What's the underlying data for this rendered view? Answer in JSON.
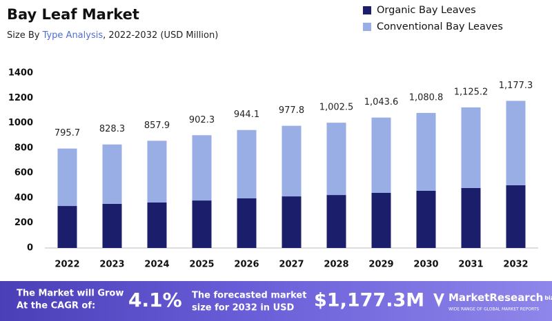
{
  "chart_data": {
    "type": "stacked_bar",
    "title": "Bay Leaf Market",
    "subtitle": [
      "Size By ",
      "Type Analysis",
      ", 2022-2032 (USD Million)"
    ],
    "categories": [
      "2022",
      "2023",
      "2024",
      "2025",
      "2026",
      "2027",
      "2028",
      "2029",
      "2030",
      "2031",
      "2032"
    ],
    "series": [
      {
        "name": "Organic Bay Leaves",
        "color": "#1b1f6b",
        "values": [
          336,
          353,
          364,
          380,
          397,
          413,
          424,
          441,
          458,
          480,
          502
        ]
      },
      {
        "name": "Conventional Bay Leaves",
        "color": "#9aaee6",
        "values": [
          459.7,
          475.3,
          493.9,
          522.3,
          547.1,
          564.8,
          578.5,
          602.6,
          622.8,
          645.2,
          675.3
        ]
      }
    ],
    "totals": {
      "values": [
        795.7,
        828.3,
        857.9,
        902.3,
        944.1,
        977.8,
        1002.5,
        1043.6,
        1080.8,
        1125.2,
        1177.3
      ],
      "value_labels": [
        "795.7",
        "828.3",
        "857.9",
        "902.3",
        "944.1",
        "977.8",
        "1,002.5",
        "1,043.6",
        "1,080.8",
        "1,125.2",
        "1,177.3"
      ]
    },
    "ylim": [
      0,
      1400
    ],
    "yticks": [
      0,
      200,
      400,
      600,
      800,
      1000,
      1200,
      1400
    ],
    "legend": "top-right",
    "grid": false
  },
  "footer": {
    "cagr_text": [
      "The Market will Grow",
      "At the CAGR of:"
    ],
    "cagr_value": "4.1%",
    "forecast_text": [
      "The forecasted market",
      "size for 2032 in USD"
    ],
    "forecast_value": "$1,177.3M",
    "brand": "MarketResearch",
    "brand_suffix": "biz",
    "brand_tagline": "WIDE RANGE OF GLOBAL MARKET REPORTS"
  }
}
